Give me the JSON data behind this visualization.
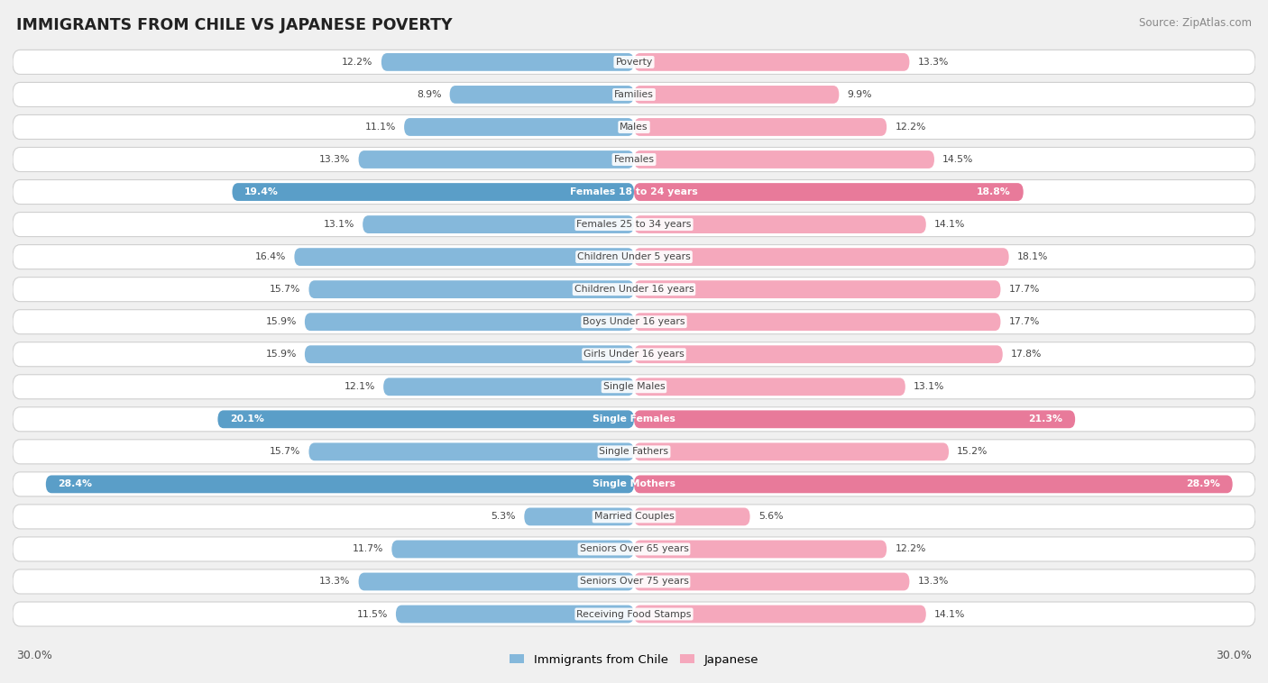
{
  "title": "IMMIGRANTS FROM CHILE VS JAPANESE POVERTY",
  "source": "Source: ZipAtlas.com",
  "categories": [
    "Poverty",
    "Families",
    "Males",
    "Females",
    "Females 18 to 24 years",
    "Females 25 to 34 years",
    "Children Under 5 years",
    "Children Under 16 years",
    "Boys Under 16 years",
    "Girls Under 16 years",
    "Single Males",
    "Single Females",
    "Single Fathers",
    "Single Mothers",
    "Married Couples",
    "Seniors Over 65 years",
    "Seniors Over 75 years",
    "Receiving Food Stamps"
  ],
  "chile_values": [
    12.2,
    8.9,
    11.1,
    13.3,
    19.4,
    13.1,
    16.4,
    15.7,
    15.9,
    15.9,
    12.1,
    20.1,
    15.7,
    28.4,
    5.3,
    11.7,
    13.3,
    11.5
  ],
  "japanese_values": [
    13.3,
    9.9,
    12.2,
    14.5,
    18.8,
    14.1,
    18.1,
    17.7,
    17.7,
    17.8,
    13.1,
    21.3,
    15.2,
    28.9,
    5.6,
    12.2,
    13.3,
    14.1
  ],
  "chile_color": "#85b8db",
  "japanese_color": "#f5a8bc",
  "chile_highlight_color": "#5a9ec8",
  "japanese_highlight_color": "#e87a9a",
  "highlight_rows": [
    4,
    11,
    13
  ],
  "axis_limit": 30.0,
  "bg_color": "#f0f0f0",
  "row_bg_color": "#ffffff",
  "legend_chile": "Immigrants from Chile",
  "legend_japanese": "Japanese"
}
